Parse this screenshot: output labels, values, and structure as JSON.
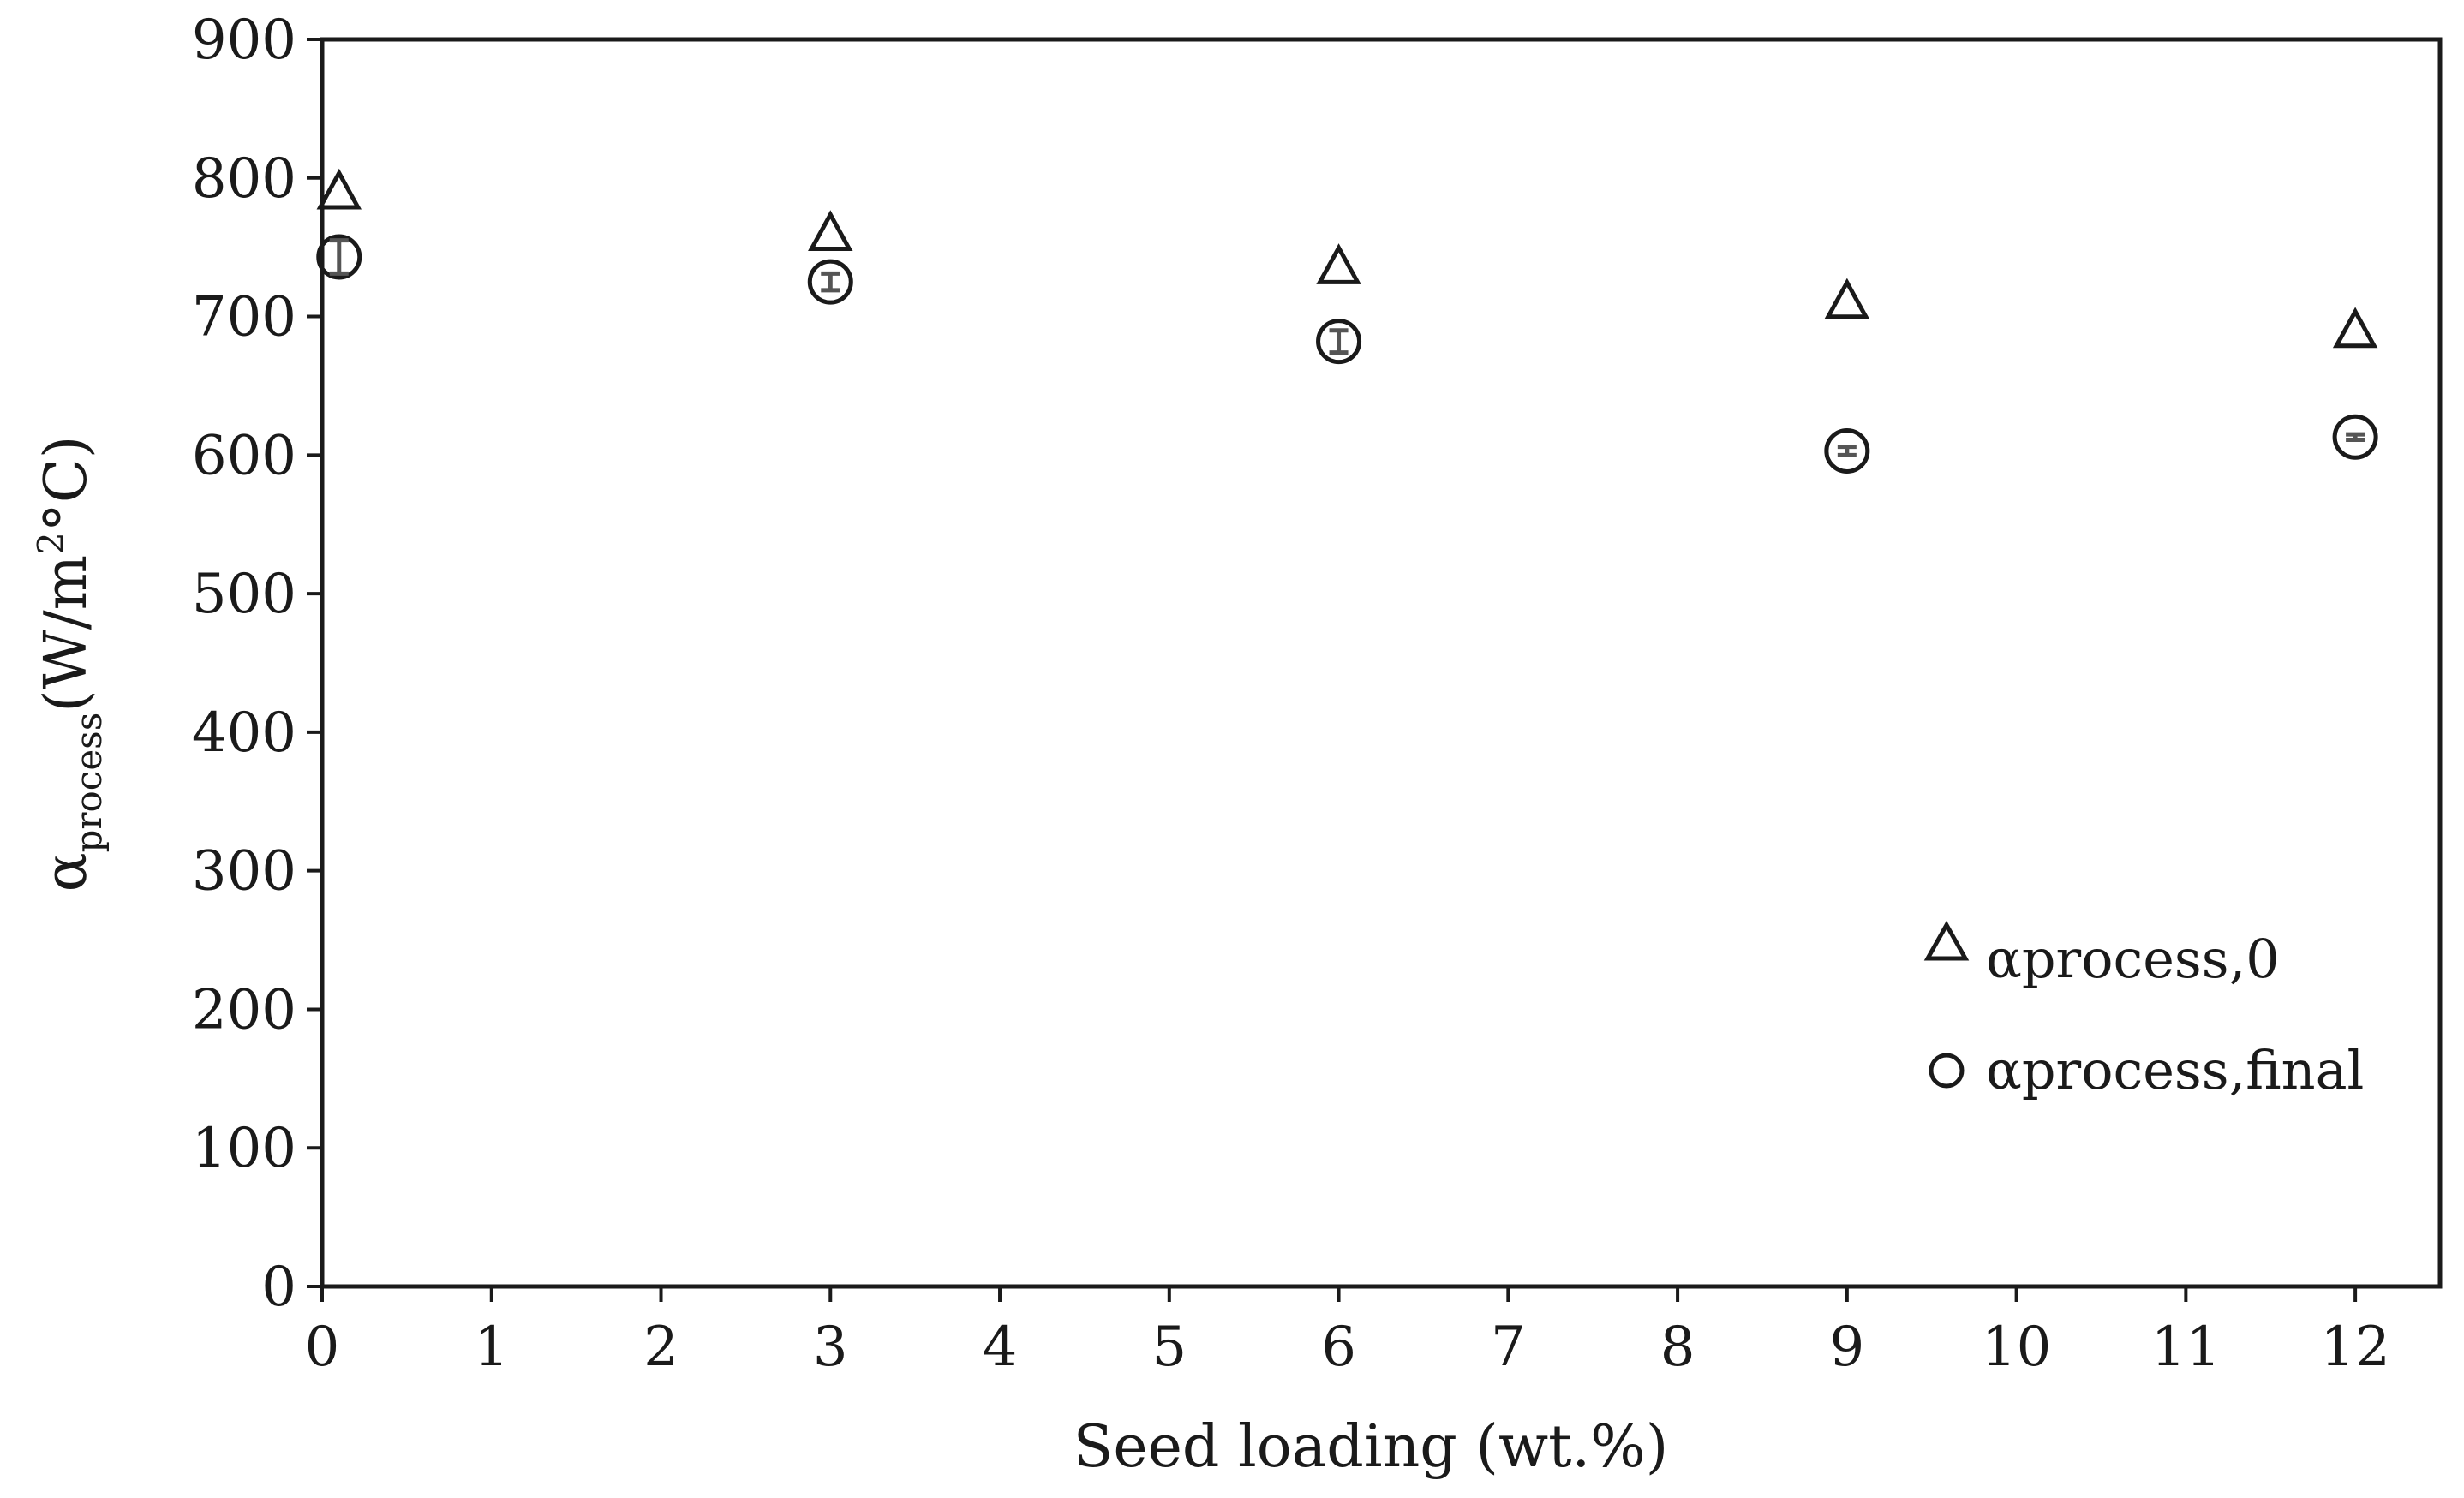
{
  "chart_data": {
    "type": "scatter",
    "xlabel": "Seed loading (wt.%)",
    "ylabel": {
      "symbol": "α",
      "subscript": "process",
      "unit_prefix": "(W/m",
      "unit_sup": "2",
      "unit_suffix": "°C)"
    },
    "xlim": [
      0,
      12.5
    ],
    "ylim": [
      0,
      900
    ],
    "x_ticks": [
      "0",
      "1",
      "2",
      "3",
      "4",
      "5",
      "6",
      "7",
      "8",
      "9",
      "10",
      "11",
      "12"
    ],
    "y_ticks": [
      "0",
      "100",
      "200",
      "300",
      "400",
      "500",
      "600",
      "700",
      "800",
      "900"
    ],
    "grid": false,
    "legend_position": "lower-right",
    "series": [
      {
        "name": "αprocess,0",
        "marker": "triangle",
        "x": [
          0.1,
          3,
          6,
          9,
          12
        ],
        "y": [
          790,
          760,
          736,
          711,
          690
        ]
      },
      {
        "name": "αprocess,final",
        "marker": "circle",
        "x": [
          0.1,
          3,
          6,
          9,
          12
        ],
        "y": [
          743,
          725,
          682,
          603,
          613
        ],
        "error": [
          12,
          6,
          8,
          3,
          2
        ]
      }
    ]
  }
}
